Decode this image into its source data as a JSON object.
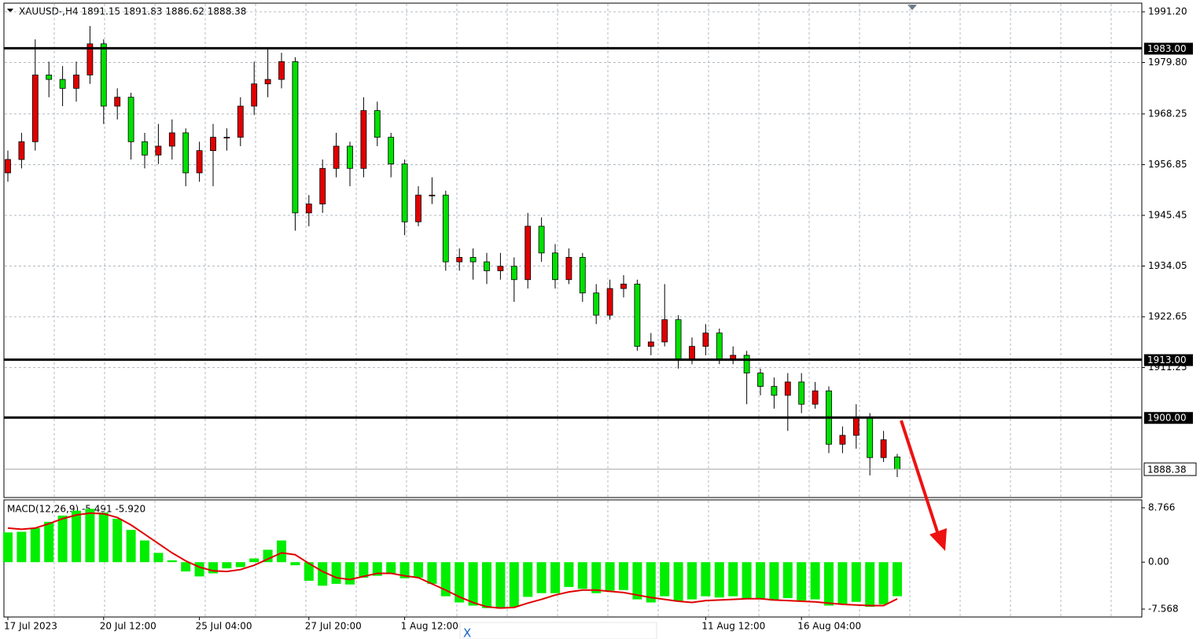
{
  "chart_data": [
    {
      "type": "candlestick",
      "title": "XAUUSD-,H4  1891.15 1891.83 1886.62 1888.38",
      "categories": [
        "17 Jul 2023",
        null,
        null,
        null,
        null,
        null,
        null,
        "20 Jul 12:00",
        null,
        null,
        null,
        null,
        null,
        null,
        "25 Jul 04:00",
        null,
        null,
        null,
        null,
        null,
        null,
        null,
        "27 Jul 20:00",
        null,
        null,
        null,
        null,
        null,
        null,
        "1 Aug 12:00",
        null,
        null,
        null,
        null,
        null,
        null,
        null,
        null,
        null,
        null,
        null,
        null,
        null,
        null,
        null,
        null,
        null,
        null,
        null,
        null,
        null,
        "11 Aug 12:00",
        null,
        null,
        null,
        null,
        null,
        null,
        "16 Aug 04:00",
        null,
        null,
        null,
        null,
        null,
        null,
        null
      ],
      "ohlc": [
        [
          1955,
          1960,
          1953,
          1958
        ],
        [
          1958,
          1964,
          1956,
          1962
        ],
        [
          1962,
          1985,
          1960,
          1977
        ],
        [
          1977,
          1980,
          1972,
          1976
        ],
        [
          1976,
          1979,
          1970,
          1974
        ],
        [
          1974,
          1980,
          1971,
          1977
        ],
        [
          1977,
          1988,
          1975,
          1984
        ],
        [
          1984,
          1985,
          1966,
          1970
        ],
        [
          1970,
          1974,
          1967,
          1972
        ],
        [
          1972,
          1973,
          1958,
          1962
        ],
        [
          1962,
          1964,
          1956,
          1959
        ],
        [
          1959,
          1966,
          1957,
          1961
        ],
        [
          1961,
          1967,
          1958,
          1964
        ],
        [
          1964,
          1965,
          1952,
          1955
        ],
        [
          1955,
          1962,
          1953,
          1960
        ],
        [
          1960,
          1966,
          1952,
          1963
        ],
        [
          1963,
          1965,
          1960,
          1963
        ],
        [
          1963,
          1972,
          1961,
          1970
        ],
        [
          1970,
          1980,
          1968,
          1975
        ],
        [
          1975,
          1983,
          1972,
          1976
        ],
        [
          1976,
          1982,
          1974,
          1980
        ],
        [
          1980,
          1981,
          1942,
          1946
        ],
        [
          1946,
          1950,
          1943,
          1948
        ],
        [
          1948,
          1958,
          1946,
          1956
        ],
        [
          1956,
          1964,
          1954,
          1961
        ],
        [
          1961,
          1962,
          1952,
          1956
        ],
        [
          1956,
          1972,
          1954,
          1969
        ],
        [
          1969,
          1971,
          1961,
          1963
        ],
        [
          1963,
          1964,
          1954,
          1957
        ],
        [
          1957,
          1958,
          1941,
          1944
        ],
        [
          1944,
          1952,
          1943,
          1950
        ],
        [
          1950,
          1954,
          1948,
          1950
        ],
        [
          1950,
          1951,
          1933,
          1935
        ],
        [
          1935,
          1938,
          1933,
          1936
        ],
        [
          1936,
          1938,
          1931,
          1935
        ],
        [
          1935,
          1937,
          1930,
          1933
        ],
        [
          1933,
          1937,
          1931,
          1934
        ],
        [
          1934,
          1936,
          1926,
          1931
        ],
        [
          1931,
          1946,
          1929,
          1943
        ],
        [
          1943,
          1945,
          1935,
          1937
        ],
        [
          1937,
          1939,
          1929,
          1931
        ],
        [
          1931,
          1938,
          1930,
          1936
        ],
        [
          1936,
          1937,
          1926,
          1928
        ],
        [
          1928,
          1930,
          1921,
          1923
        ],
        [
          1923,
          1931,
          1922,
          1929
        ],
        [
          1929,
          1932,
          1927,
          1930
        ],
        [
          1930,
          1931,
          1915,
          1916
        ],
        [
          1916,
          1919,
          1914,
          1917
        ],
        [
          1917,
          1930,
          1916,
          1922
        ],
        [
          1922,
          1923,
          1911,
          1913
        ],
        [
          1913,
          1918,
          1912,
          1916
        ],
        [
          1916,
          1921,
          1914,
          1919
        ],
        [
          1919,
          1920,
          1912,
          1913
        ],
        [
          1913,
          1916,
          1912,
          1914
        ],
        [
          1914,
          1915,
          1903,
          1910
        ],
        [
          1910,
          1911,
          1905,
          1907
        ],
        [
          1907,
          1909,
          1902,
          1905
        ],
        [
          1905,
          1910,
          1897,
          1908
        ],
        [
          1908,
          1910,
          1901,
          1903
        ],
        [
          1903,
          1908,
          1902,
          1906
        ],
        [
          1906,
          1907,
          1892,
          1894
        ],
        [
          1894,
          1898,
          1892,
          1896
        ],
        [
          1896,
          1903,
          1893,
          1900
        ],
        [
          1900,
          1901,
          1887,
          1891
        ],
        [
          1891,
          1897,
          1890,
          1895
        ],
        [
          1891.15,
          1891.83,
          1886.62,
          1888.38
        ]
      ],
      "up_color": "#e00000",
      "down_color": "#00e000",
      "ylim": [
        1882.2,
        1992.97
      ],
      "yticks": [
        {
          "value": 1991.2,
          "label": "1991.20"
        },
        {
          "value": 1979.8,
          "label": "1979.80"
        },
        1968.25,
        1956.85,
        1945.45,
        1934.05,
        1922.65,
        1911.25
      ],
      "levels": [
        {
          "value": 1983,
          "label": "1983.00"
        },
        {
          "value": 1913,
          "label": "1913.00"
        },
        {
          "value": 1900,
          "label": "1900.00"
        }
      ],
      "last_price": 1888.38,
      "grid": true
    },
    {
      "type": "macd",
      "title": "MACD(12,26,9) -5.491 -5.920",
      "histogram": [
        4.8,
        4.9,
        5.5,
        6.5,
        7.5,
        8.3,
        8.6,
        8,
        7,
        5.2,
        3.5,
        1.5,
        0.3,
        -1.5,
        -2.3,
        -1.8,
        -1,
        -0.8,
        0.6,
        2,
        3.5,
        -0.5,
        -3,
        -3.8,
        -3.5,
        -3.6,
        -2.5,
        -2.2,
        -1.8,
        -2.6,
        -2.5,
        -3.5,
        -5.5,
        -6.5,
        -7,
        -7.4,
        -7.5,
        -7.2,
        -5.6,
        -5,
        -5,
        -4,
        -4.3,
        -5,
        -4.6,
        -4.5,
        -6,
        -6.5,
        -5.5,
        -6.3,
        -6,
        -5.5,
        -5.7,
        -5.5,
        -5.8,
        -6,
        -6.2,
        -5.8,
        -6.2,
        -6,
        -7,
        -6.8,
        -6.4,
        -7.2,
        -6.8,
        -5.491
      ],
      "signal": [
        5.5,
        5.3,
        5.5,
        6.2,
        7,
        7.6,
        7.9,
        7.8,
        7.2,
        6,
        4.5,
        3,
        1.5,
        0.2,
        -0.8,
        -1.4,
        -1.5,
        -1.2,
        -0.5,
        0.5,
        1.5,
        1.2,
        -0.2,
        -1.5,
        -2.5,
        -2.8,
        -2.3,
        -1.8,
        -1.8,
        -2.2,
        -2.5,
        -3.5,
        -4.5,
        -5.6,
        -6.5,
        -7.2,
        -7.4,
        -7.3,
        -6.6,
        -6,
        -5.3,
        -4.8,
        -4.5,
        -4.5,
        -4.7,
        -4.9,
        -5.3,
        -5.7,
        -6,
        -6.3,
        -6.5,
        -6.2,
        -6.1,
        -6,
        -5.9,
        -5.9,
        -6.1,
        -6.2,
        -6.3,
        -6.4,
        -6.6,
        -6.8,
        -6.9,
        -7,
        -7,
        -5.92
      ],
      "histogram_color": "#00ee00",
      "signal_color": "#e00000",
      "ylim": [
        -8.84,
        10.04
      ],
      "yticks": [
        8.766,
        {
          "value": 0,
          "label": "0.00"
        },
        -7.568
      ]
    }
  ],
  "overlay": {
    "icon": "X"
  }
}
